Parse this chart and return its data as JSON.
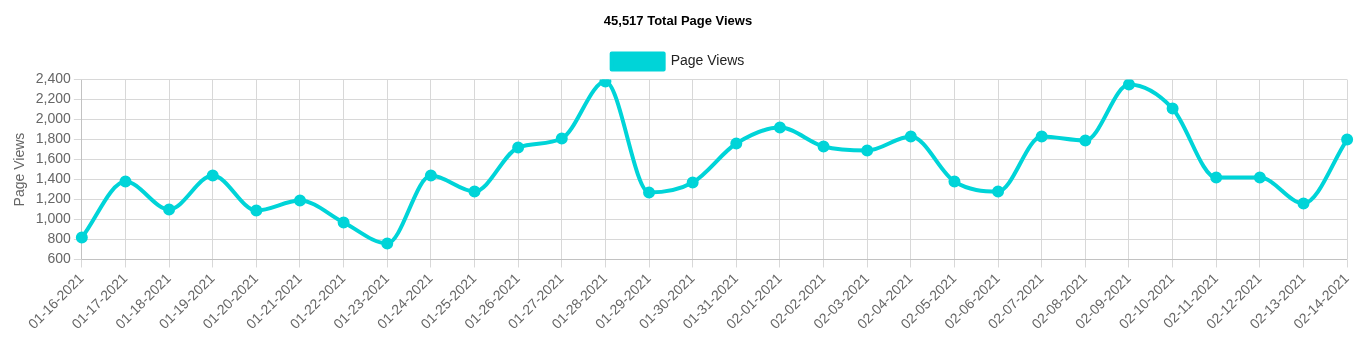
{
  "chart_data": {
    "type": "line",
    "title": "45,517 Total Page Views",
    "ylabel": "Page Views",
    "categories": [
      "01-16-2021",
      "01-17-2021",
      "01-18-2021",
      "01-19-2021",
      "01-20-2021",
      "01-21-2021",
      "01-22-2021",
      "01-23-2021",
      "01-24-2021",
      "01-25-2021",
      "01-26-2021",
      "01-27-2021",
      "01-28-2021",
      "01-29-2021",
      "01-30-2021",
      "01-31-2021",
      "02-01-2021",
      "02-02-2021",
      "02-03-2021",
      "02-04-2021",
      "02-05-2021",
      "02-06-2021",
      "02-07-2021",
      "02-08-2021",
      "02-09-2021",
      "02-10-2021",
      "02-11-2021",
      "02-12-2021",
      "02-13-2021",
      "02-14-2021"
    ],
    "series": [
      {
        "name": "Page Views",
        "color": "#00d4d8",
        "values": [
          820,
          1380,
          1100,
          1440,
          1090,
          1190,
          970,
          760,
          1440,
          1280,
          1720,
          1810,
          2380,
          1270,
          1370,
          1760,
          1920,
          1730,
          1690,
          1830,
          1380,
          1280,
          1830,
          1790,
          2350,
          2110,
          1420,
          1420,
          1160,
          1800
        ]
      }
    ],
    "ylim": [
      600,
      2400
    ],
    "yticks": [
      600,
      800,
      {
        "value": 1000,
        "label": "1,000"
      },
      {
        "value": 1200,
        "label": "1,200"
      },
      {
        "value": 1400,
        "label": "1,400"
      },
      {
        "value": 1600,
        "label": "1,600"
      },
      {
        "value": 1800,
        "label": "1,800"
      },
      {
        "value": 2000,
        "label": "2,000"
      },
      {
        "value": 2200,
        "label": "2,200"
      },
      {
        "value": 2400,
        "label": "2,400"
      }
    ],
    "grid": true,
    "legend": "top",
    "marker": "circle",
    "line_style": "solid"
  }
}
